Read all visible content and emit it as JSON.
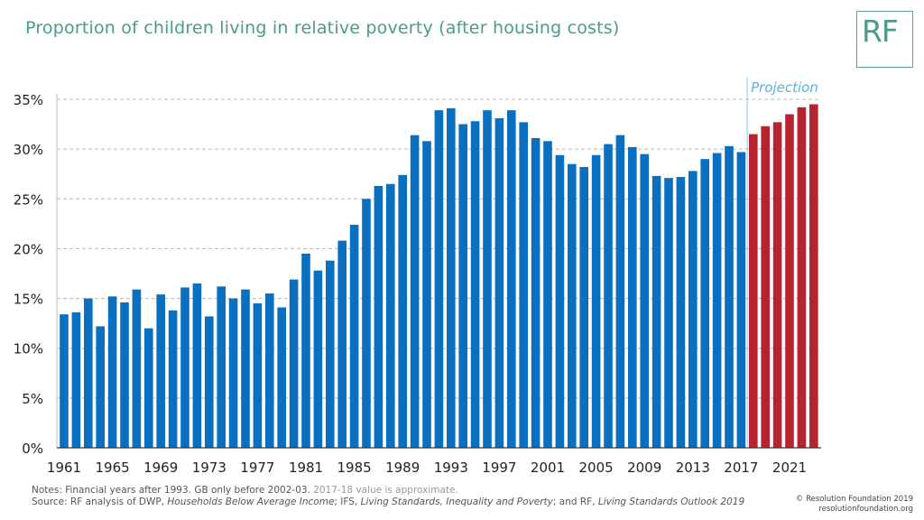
{
  "title": "Proportion of children living in relative poverty (after housing costs)",
  "logo_text": "RF",
  "notes": {
    "line1_main": "Notes: Financial years after 1993. GB only before 2002-03.",
    "line1_approx": "2017-18 value is approximate.",
    "source_prefix": "Source: RF analysis of DWP, ",
    "source_hbai": "Households Below Average Income",
    "source_mid1": "; IFS, ",
    "source_ls": "Living Standards, Inequality and Poverty",
    "source_mid2": "; and RF, ",
    "source_lso": "Living Standards Outlook 2019"
  },
  "footer": {
    "copyright": "© Resolution Foundation 2019",
    "website": "resolutionfoundation.org"
  },
  "colors": {
    "historic": "#0b6fc0",
    "projection": "#b5242f",
    "title": "#4a9a8e",
    "projection_label": "#5bb0e8"
  },
  "chart_data": {
    "type": "bar",
    "ylim": [
      0,
      35
    ],
    "y_ticks": [
      "0%",
      "5%",
      "10%",
      "15%",
      "20%",
      "25%",
      "30%",
      "35%"
    ],
    "x_tick_labels": [
      "1961",
      "1965",
      "1969",
      "1973",
      "1977",
      "1981",
      "1985",
      "1989",
      "1993",
      "1997",
      "2001",
      "2005",
      "2009",
      "2013",
      "2017",
      "2021"
    ],
    "grid": "horizontal dashed",
    "annotation": "Projection",
    "series": [
      {
        "name": "",
        "categories": [
          "1961",
          "1962",
          "1963",
          "1964",
          "1965",
          "1966",
          "1967",
          "1968",
          "1969",
          "1970",
          "1971",
          "1972",
          "1973",
          "1974",
          "1975",
          "1976",
          "1977",
          "1978",
          "1979",
          "1980",
          "1981",
          "1982",
          "1983",
          "1984",
          "1985",
          "1986",
          "1987",
          "1988",
          "1989",
          "1990",
          "1991",
          "1992",
          "1993",
          "1994",
          "1995",
          "1996",
          "1997",
          "1998",
          "1999",
          "2000",
          "2001",
          "2002",
          "2003",
          "2004",
          "2005",
          "2006",
          "2007",
          "2008",
          "2009",
          "2010",
          "2011",
          "2012",
          "2013",
          "2014",
          "2015",
          "2016",
          "2017"
        ],
        "values": [
          13.4,
          13.6,
          15.0,
          12.2,
          15.2,
          14.6,
          15.9,
          12.0,
          15.4,
          13.8,
          16.1,
          16.5,
          13.2,
          16.2,
          15.0,
          15.9,
          14.5,
          15.5,
          14.1,
          16.9,
          19.5,
          17.8,
          18.8,
          20.8,
          22.4,
          25.0,
          26.3,
          26.5,
          27.4,
          31.4,
          30.8,
          33.9,
          34.1,
          32.5,
          32.8,
          33.9,
          33.1,
          33.9,
          32.7,
          31.1,
          30.8,
          29.4,
          28.5,
          28.2,
          29.4,
          30.5,
          31.4,
          30.2,
          29.5,
          27.3,
          27.1,
          27.2,
          27.8,
          29.0,
          29.6,
          30.3,
          29.7
        ]
      },
      {
        "name": "Projection",
        "categories": [
          "2018",
          "2019",
          "2020",
          "2021",
          "2022",
          "2023"
        ],
        "values": [
          31.5,
          32.3,
          32.7,
          33.5,
          34.2,
          34.5
        ]
      }
    ]
  }
}
